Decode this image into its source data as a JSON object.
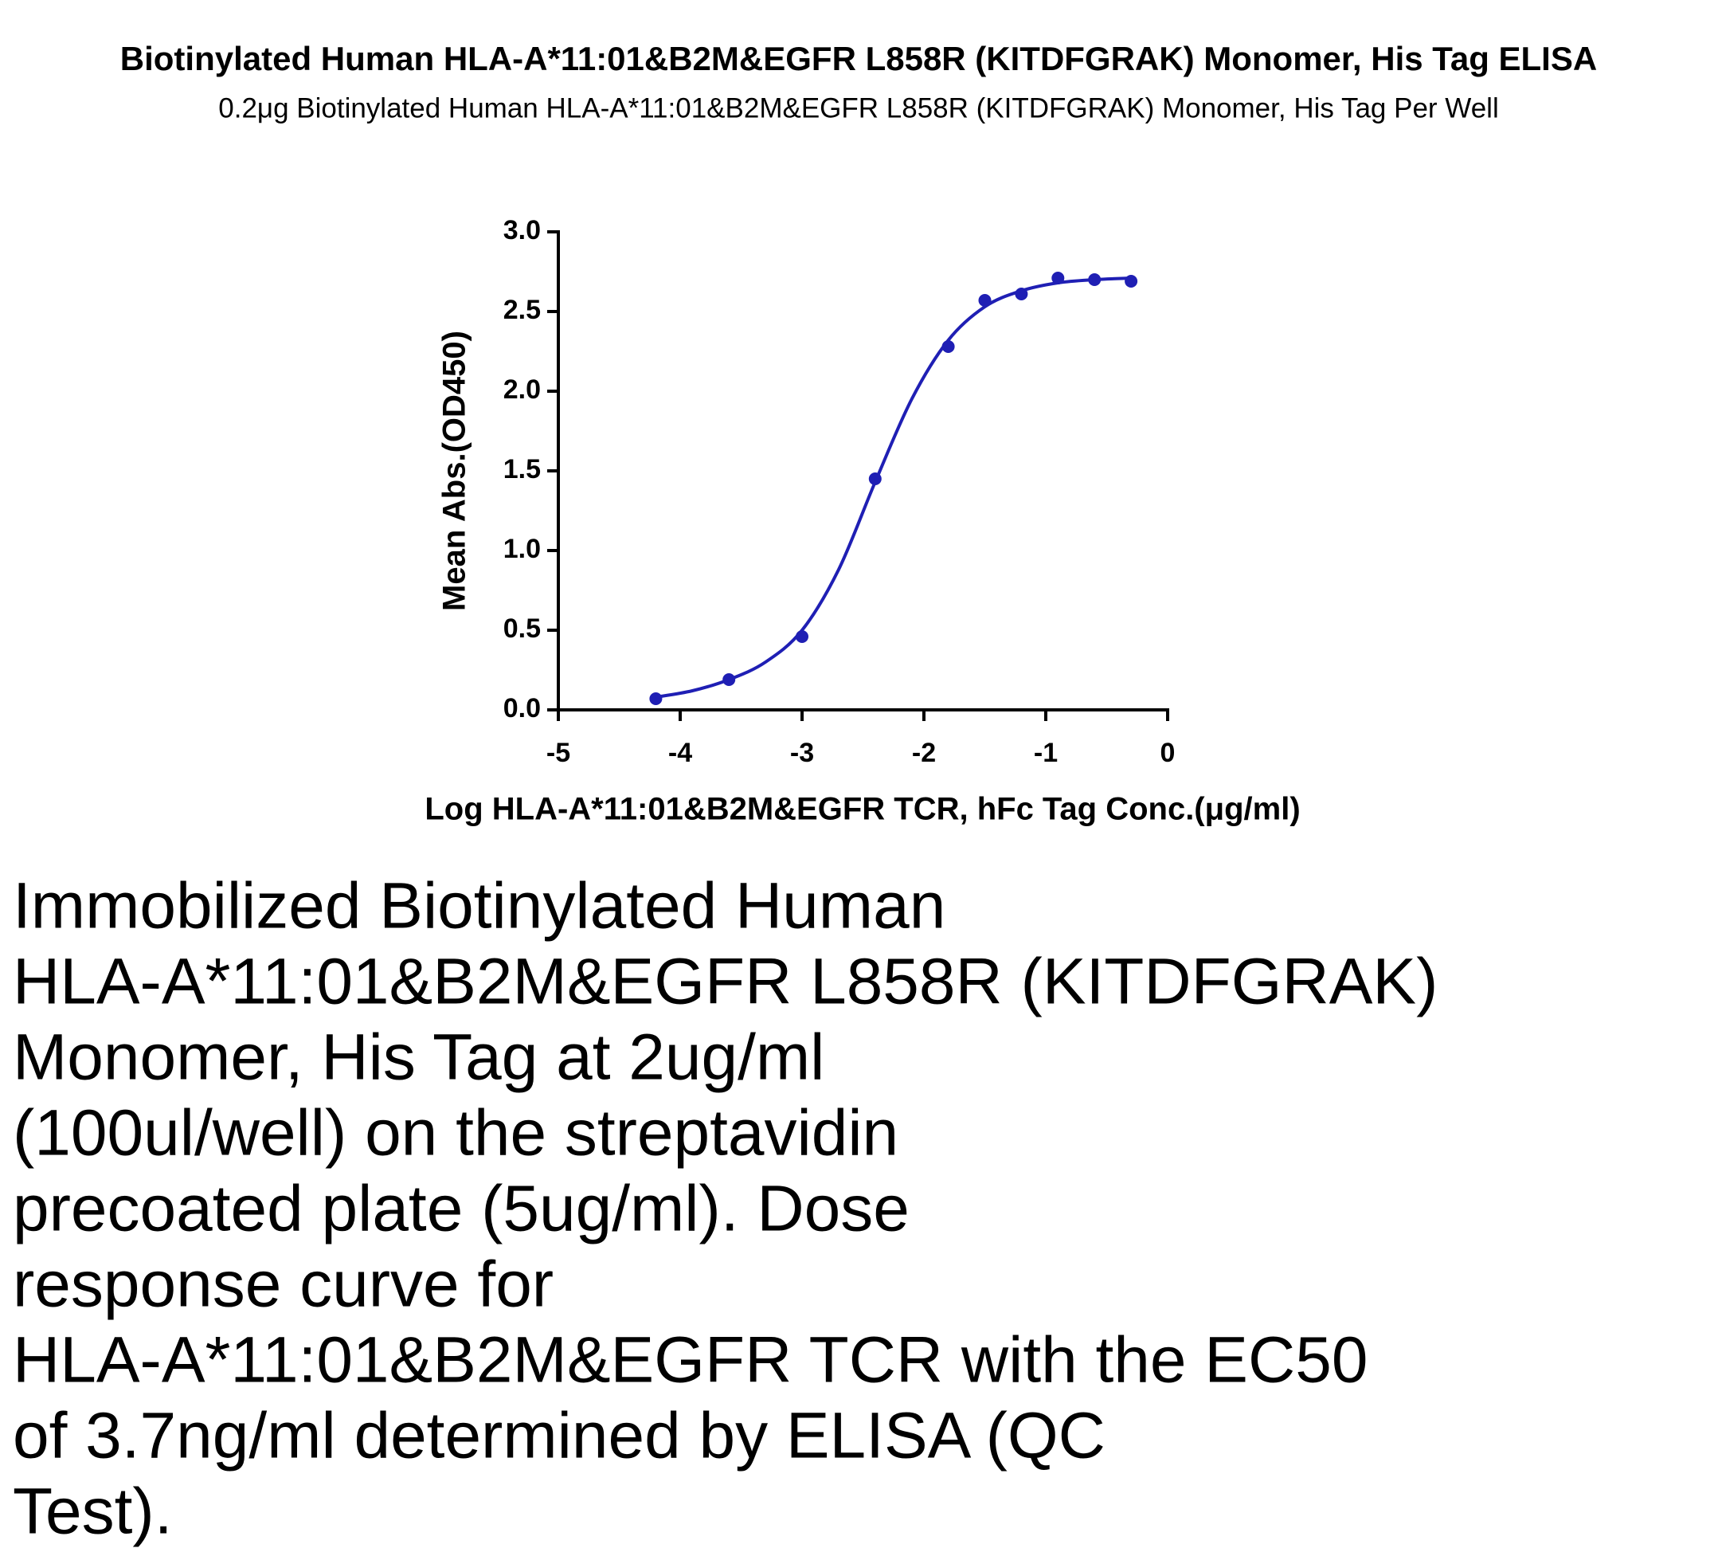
{
  "chart_data": {
    "type": "scatter",
    "title": "Biotinylated Human HLA-A*11:01&B2M&EGFR L858R (KITDFGRAK) Monomer, His Tag ELISA",
    "subtitle": "0.2μg Biotinylated Human HLA-A*11:01&B2M&EGFR L858R (KITDFGRAK) Monomer, His Tag Per Well",
    "x_label": "Log HLA-A*11:01&B2M&EGFR TCR, hFc Tag Conc.(μg/ml)",
    "y_label": "Mean Abs.(OD450)",
    "x": [
      -4.2,
      -3.6,
      -3.0,
      -2.4,
      -1.8,
      -1.5,
      -1.2,
      -0.9,
      -0.6,
      -0.3
    ],
    "series": [
      {
        "color": "#1f1fb4",
        "marker": "circle",
        "values": [
          0.07,
          0.19,
          0.46,
          1.45,
          2.28,
          2.57,
          2.61,
          2.71,
          2.7,
          2.69
        ]
      },
      {
        "color": "#1f1fb4",
        "marker": "line",
        "x": [
          -4.2,
          -3.9,
          -3.6,
          -3.3,
          -3.0,
          -2.7,
          -2.4,
          -2.1,
          -1.8,
          -1.5,
          -1.2,
          -0.9,
          -0.6,
          -0.3
        ],
        "values": [
          0.08,
          0.12,
          0.19,
          0.3,
          0.5,
          0.88,
          1.43,
          1.95,
          2.32,
          2.53,
          2.63,
          2.68,
          2.7,
          2.71
        ]
      }
    ],
    "xlim": [
      -5,
      0
    ],
    "xticks": [
      -5,
      -4,
      -3,
      -2,
      -1,
      0
    ],
    "ylim": [
      0,
      3
    ],
    "yticks": [
      {
        "value": 0,
        "label": "0.0"
      },
      {
        "value": 0.5,
        "label": "0.5"
      },
      {
        "value": 1,
        "label": "1.0"
      },
      {
        "value": 1.5,
        "label": "1.5"
      },
      {
        "value": 2,
        "label": "2.0"
      },
      {
        "value": 2.5,
        "label": "2.5"
      },
      {
        "value": 3,
        "label": "3.0"
      }
    ],
    "grid": false
  },
  "description": [
    "Immobilized Biotinylated Human",
    "HLA-A*11:01&B2M&EGFR L858R (KITDFGRAK)",
    "Monomer, His Tag at 2ug/ml",
    "(100ul/well) on the streptavidin",
    "precoated plate (5ug/ml). Dose",
    "response curve for",
    "HLA-A*11:01&B2M&EGFR TCR with the EC50",
    "of 3.7ng/ml determined by ELISA (QC",
    "Test)."
  ]
}
